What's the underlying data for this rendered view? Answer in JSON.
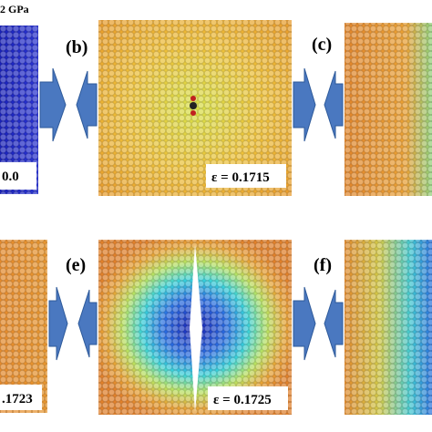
{
  "header": {
    "title": "2 GPa"
  },
  "panels": [
    {
      "strain": "0.0"
    },
    {
      "label": "(b)",
      "strain": "ε = 0.1715"
    },
    {
      "label": "(c)"
    },
    {
      "strain": ".1723"
    },
    {
      "label": "(e)",
      "strain": "ε = 0.1725"
    },
    {
      "label": "(f)"
    }
  ]
}
